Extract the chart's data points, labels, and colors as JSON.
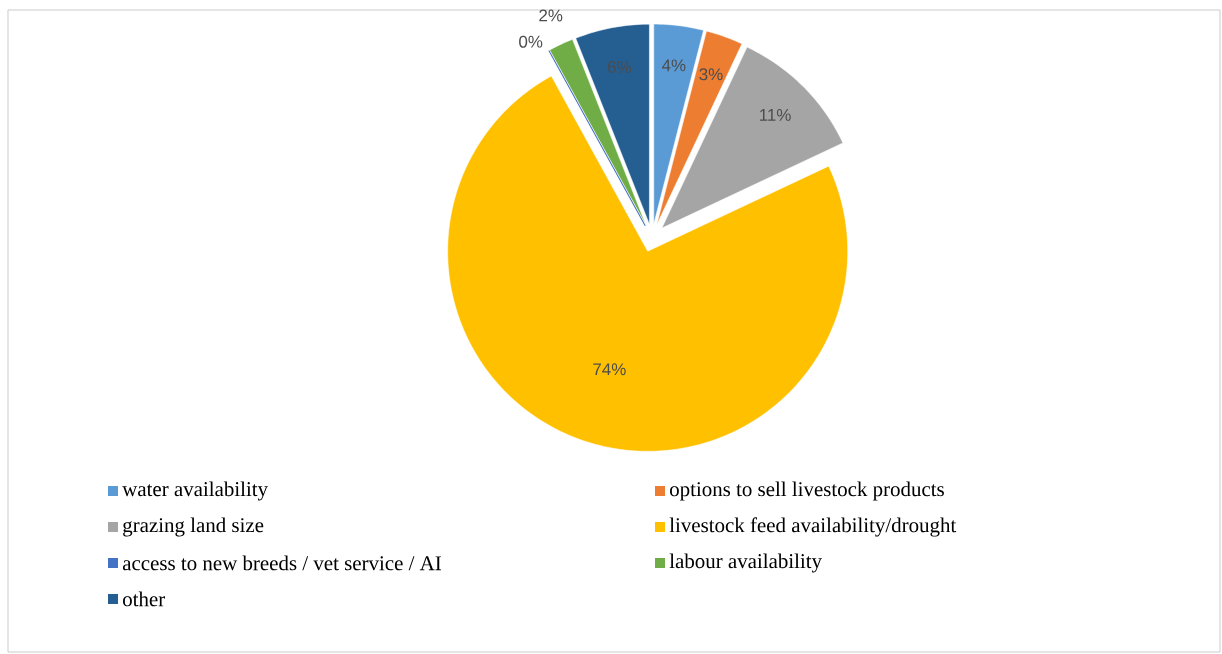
{
  "chart_data": {
    "type": "pie",
    "categories": [
      "water availability",
      "options to sell livestock products",
      "grazing land size",
      "livestock feed availability/drought",
      "access to new breeds / vet service / AI",
      "labour availability",
      "other"
    ],
    "values": [
      4,
      3,
      11,
      74,
      0,
      2,
      6
    ],
    "value_labels": [
      "4%",
      "3%",
      "11%",
      "74%",
      "0%",
      "2%",
      "6%"
    ],
    "colors": [
      "#5b9bd5",
      "#ed7d31",
      "#a5a5a5",
      "#ffc000",
      "#4472c4",
      "#70ad47",
      "#255e91"
    ],
    "legend": "bottom"
  }
}
